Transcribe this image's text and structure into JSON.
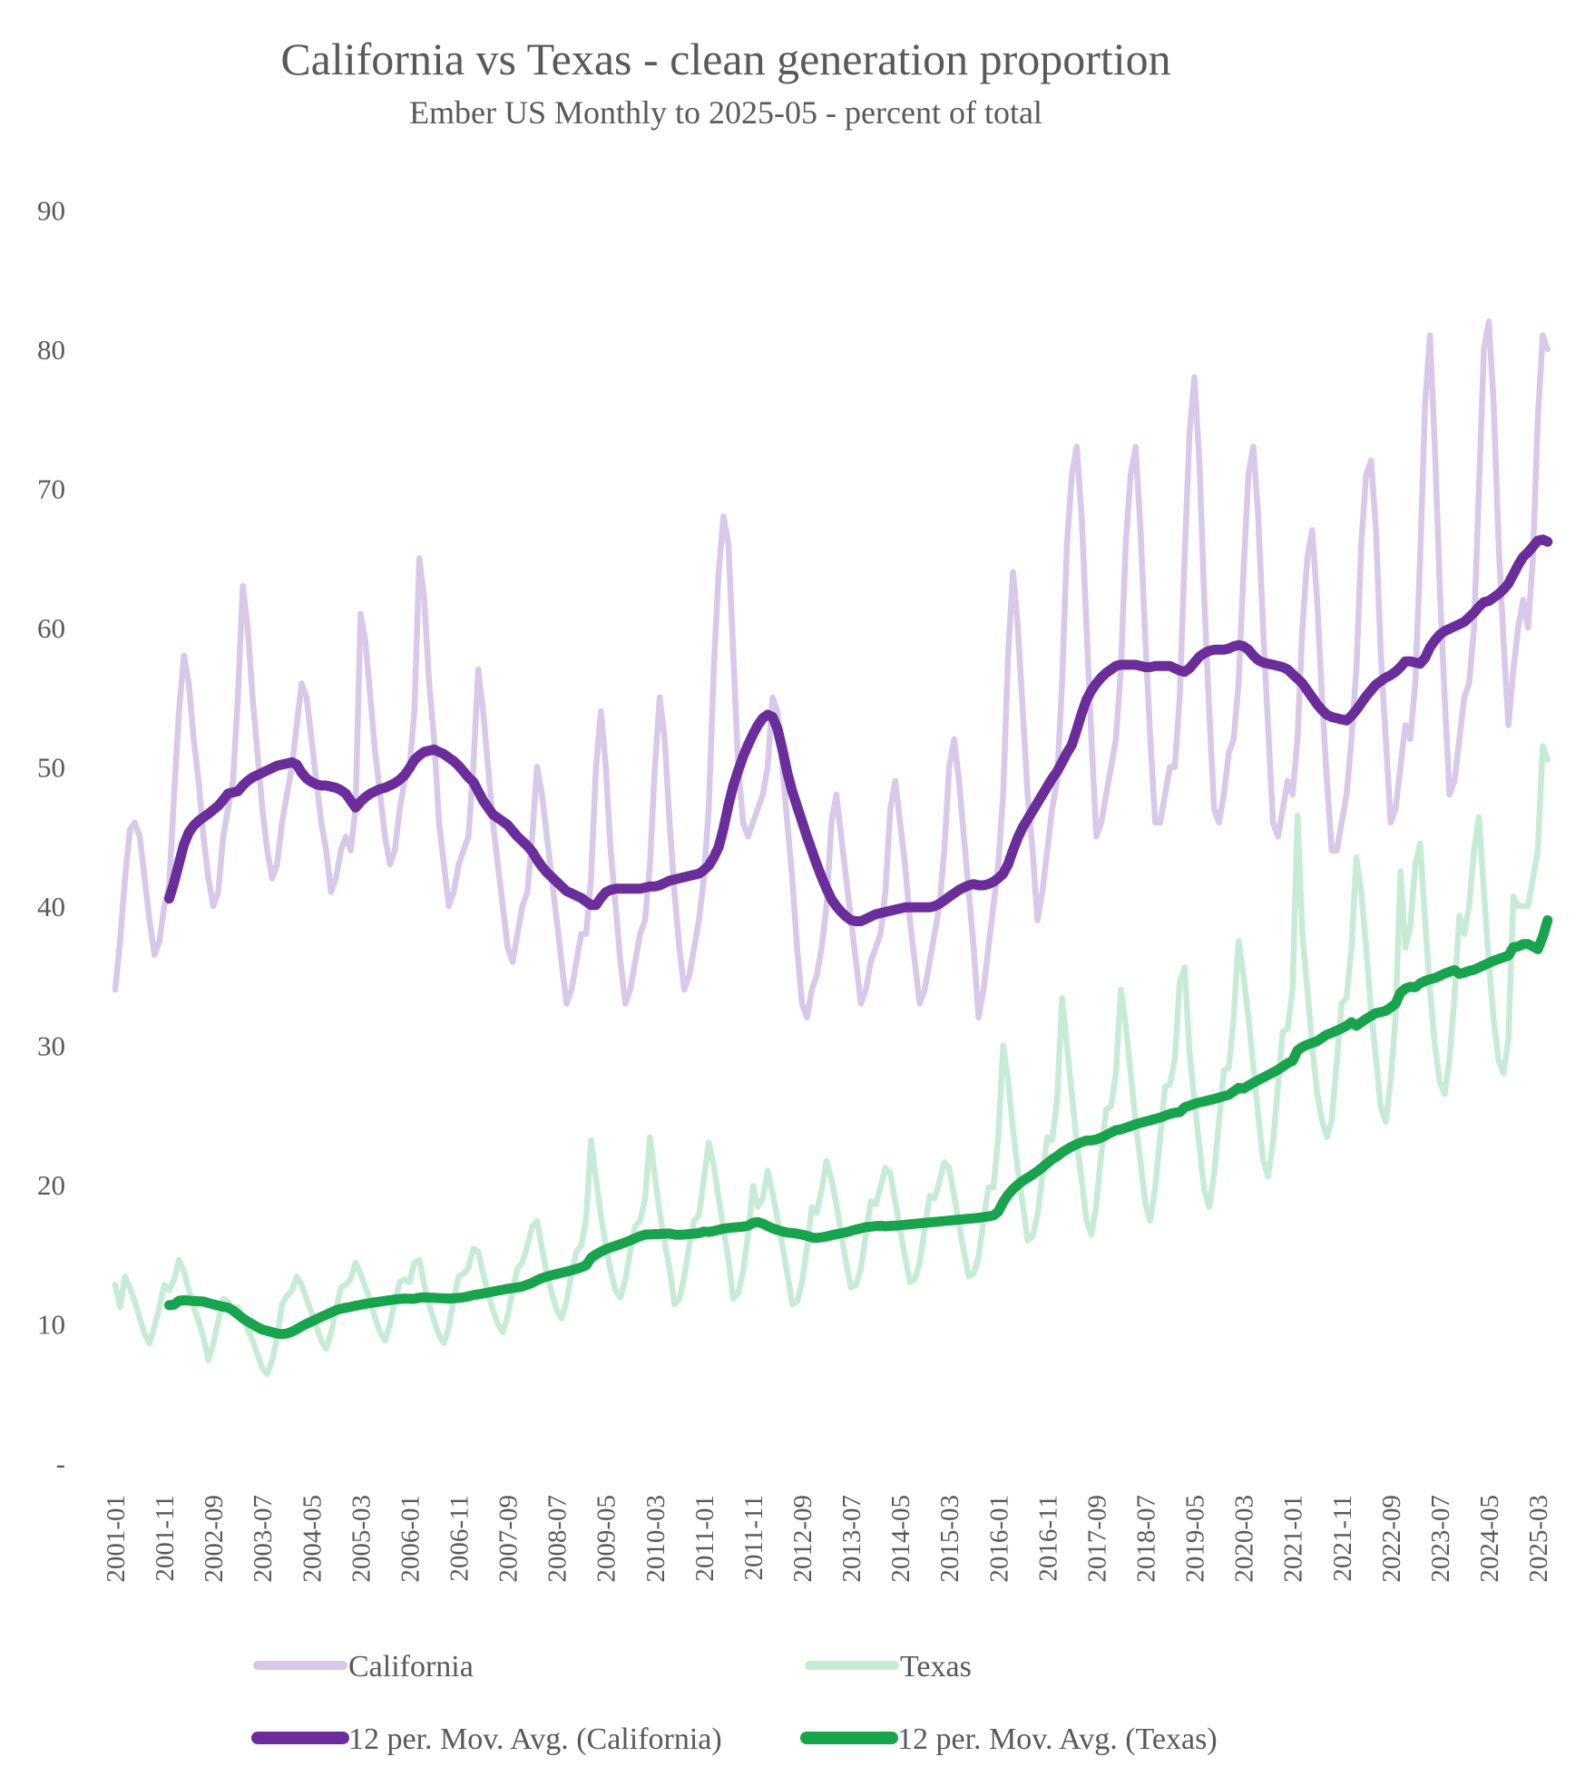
{
  "title": "California vs Texas - clean generation proportion",
  "subtitle": "Ember US Monthly to 2025-05 - percent of total",
  "text_color": "#595959",
  "legend": {
    "rows": [
      [
        {
          "label": "California",
          "series": "california",
          "stroke": 10
        },
        {
          "label": "Texas",
          "series": "texas",
          "stroke": 10
        }
      ],
      [
        {
          "label": "12 per. Mov. Avg. (California)",
          "series": "california_ma",
          "stroke": 14
        },
        {
          "label": "12 per. Mov. Avg. (Texas)",
          "series": "texas_ma",
          "stroke": 14
        }
      ]
    ]
  },
  "chart_data": {
    "type": "line",
    "title": "California vs Texas - clean generation proportion",
    "subtitle": "Ember US Monthly to 2025-05 - percent of total",
    "xlabel": "",
    "ylabel": "percent of total",
    "ylim": [
      0,
      90
    ],
    "grid": false,
    "legend_position": "bottom",
    "x_months": {
      "start": "2001-01",
      "end": "2025-05",
      "count": 293
    },
    "x_tick_every": 10,
    "x_tick_labels": [
      "2001-01",
      "2001-11",
      "2002-09",
      "2003-07",
      "2004-05",
      "2005-03",
      "2006-01",
      "2006-11",
      "2007-09",
      "2008-07",
      "2009-05",
      "2010-03",
      "2011-01",
      "2011-11",
      "2012-09",
      "2013-07",
      "2014-05",
      "2015-03",
      "2016-01",
      "2016-11",
      "2017-09",
      "2018-07",
      "2019-05",
      "2020-03",
      "2021-01",
      "2021-11",
      "2022-09",
      "2023-07",
      "2024-05",
      "2025-03"
    ],
    "y_ticks": [
      {
        "value": 90,
        "label": "90"
      },
      {
        "value": 80,
        "label": "80"
      },
      {
        "value": 70,
        "label": "70"
      },
      {
        "value": 60,
        "label": "60"
      },
      {
        "value": 50,
        "label": "50"
      },
      {
        "value": 40,
        "label": "40"
      },
      {
        "value": 30,
        "label": "30"
      },
      {
        "value": 20,
        "label": "20"
      },
      {
        "value": 10,
        "label": "10"
      },
      {
        "value": 0,
        "label": "-"
      }
    ],
    "moving_average_window": 12,
    "colors": {
      "california": "#D8C8E9",
      "texas": "#C8EBD6",
      "california_ma": "#6B2D9B",
      "texas_ma": "#18A34D"
    },
    "series": [
      {
        "name": "California",
        "key": "california",
        "values": [
          34,
          37.5,
          42,
          45.5,
          46,
          45,
          42,
          39,
          36.5,
          37.5,
          40,
          41.5,
          48,
          54,
          58,
          56,
          52,
          49,
          45,
          42,
          40,
          41,
          45,
          47,
          49,
          55,
          63,
          60,
          55,
          51,
          47,
          44,
          42,
          43,
          46,
          48,
          50,
          53,
          56,
          55,
          52,
          49,
          46,
          44,
          41,
          42,
          44,
          45,
          44,
          47,
          61,
          59,
          55,
          51,
          48,
          45,
          43,
          44,
          47,
          49,
          50,
          54,
          65,
          62,
          56,
          52,
          46,
          43,
          40,
          41,
          43,
          44,
          45,
          50,
          57,
          54,
          50,
          46,
          43,
          40,
          37,
          36,
          38,
          40,
          41,
          45,
          50,
          48,
          45,
          42,
          39,
          36,
          33,
          34,
          36,
          38,
          38,
          42,
          50,
          54,
          50,
          44,
          40,
          36,
          33,
          34,
          36,
          38,
          39,
          43,
          50,
          55,
          52,
          46,
          41,
          37,
          34,
          35,
          37,
          39,
          42,
          47,
          57,
          64,
          68,
          66,
          58,
          50,
          46,
          45,
          46,
          47,
          48,
          50,
          55,
          54,
          50,
          46,
          42,
          37,
          33,
          32,
          34,
          35,
          37,
          40,
          46,
          48,
          45,
          42,
          39,
          36,
          33,
          34,
          36,
          37,
          38,
          41,
          47,
          49,
          46,
          43,
          39,
          36,
          33,
          34,
          36,
          38,
          40,
          44,
          50,
          52,
          49,
          45,
          41,
          37,
          32,
          34,
          37,
          40,
          43,
          48,
          58,
          64,
          60,
          54,
          48,
          44,
          39,
          41,
          44,
          47,
          49,
          56,
          66,
          71,
          73,
          68,
          60,
          52,
          45,
          46,
          48,
          50,
          52,
          57,
          66,
          71,
          73,
          67,
          59,
          52,
          46,
          46,
          48,
          50,
          50,
          55,
          65,
          74,
          78,
          72,
          62,
          54,
          47,
          46,
          48,
          51,
          52,
          56,
          64,
          71,
          73,
          68,
          60,
          53,
          46,
          45,
          47,
          49,
          48,
          52,
          60,
          65,
          67,
          62,
          55,
          49,
          44,
          44,
          46,
          48,
          52,
          57,
          66,
          71,
          72,
          67,
          58,
          52,
          46,
          47,
          50,
          53,
          52,
          56,
          65,
          76,
          81,
          73,
          63,
          55,
          48,
          49,
          52,
          55,
          56,
          60,
          70,
          80,
          82,
          76,
          66,
          59,
          53,
          57,
          60,
          62,
          60,
          65,
          75,
          81,
          80
        ]
      },
      {
        "name": "Texas",
        "key": "texas",
        "values": [
          12.8,
          11.2,
          13.4,
          12.6,
          11.6,
          10.4,
          9.3,
          8.6,
          9.8,
          11.2,
          12.8,
          12.4,
          13.2,
          14.6,
          13.8,
          12.4,
          11.2,
          10.2,
          9,
          7.4,
          8.6,
          10.2,
          11.8,
          11.6,
          10.8,
          11.2,
          10.4,
          9.6,
          8.8,
          7.8,
          6.8,
          6.4,
          7.4,
          9,
          11.4,
          12,
          12.4,
          13.4,
          12.8,
          11.8,
          10.8,
          9.8,
          8.8,
          8.2,
          9.4,
          11,
          12.6,
          12.8,
          13.2,
          14.4,
          13.6,
          12.6,
          11.6,
          10.4,
          9.4,
          8.8,
          10,
          11.6,
          13,
          13.2,
          13,
          14.4,
          14.6,
          12.8,
          11.4,
          10.2,
          9.2,
          8.6,
          9.8,
          11.8,
          13.4,
          13.6,
          14,
          15.4,
          15.2,
          13.6,
          12.2,
          11,
          10,
          9.4,
          10.6,
          12.4,
          14,
          14.4,
          15.6,
          17,
          17.4,
          15.4,
          13.6,
          12.2,
          11,
          10.4,
          11.6,
          13.6,
          15.2,
          15.6,
          17.6,
          23.2,
          20.4,
          17.8,
          15.6,
          13.8,
          12.4,
          11.9,
          13.2,
          15.2,
          17,
          17.4,
          19,
          23.4,
          20.6,
          18,
          15.8,
          14,
          11.4,
          11.8,
          13.4,
          15.6,
          17.4,
          17.8,
          20.4,
          23,
          21.4,
          19,
          16.8,
          14.6,
          11.8,
          12.2,
          13.8,
          16.4,
          19.9,
          18.4,
          19,
          21,
          19.4,
          17.6,
          15.6,
          13.6,
          11.4,
          11.6,
          13,
          15.4,
          18.4,
          18,
          19.6,
          21.7,
          20.4,
          18.6,
          16.4,
          14.4,
          12.6,
          12.8,
          14,
          16.4,
          18.8,
          18.6,
          19.8,
          21.2,
          20.8,
          18.8,
          16.8,
          14.8,
          13,
          13.2,
          14.4,
          16.8,
          19.2,
          19,
          20.2,
          21.6,
          21.2,
          19.2,
          17.2,
          15.2,
          13.4,
          13.6,
          14.8,
          17.4,
          19.8,
          19.8,
          23.4,
          30,
          27.5,
          24,
          21,
          18.6,
          16,
          16.3,
          17.8,
          20.6,
          23.4,
          23.2,
          26,
          33.4,
          30,
          26.5,
          23,
          20.4,
          17.4,
          16.4,
          18.6,
          22.2,
          25.4,
          25.6,
          28,
          34,
          31.5,
          28,
          24.5,
          21.6,
          18.6,
          17.4,
          19.8,
          23.4,
          27,
          27.2,
          29,
          34.5,
          35.6,
          29.5,
          26,
          22.8,
          19.6,
          18.4,
          20.8,
          24.6,
          28.2,
          28.4,
          32,
          37.5,
          35,
          32,
          28.5,
          25,
          21.8,
          20.6,
          23,
          27,
          31,
          31.2,
          34,
          46.5,
          38,
          34,
          30,
          26.6,
          24.6,
          23.4,
          24.6,
          28.8,
          33,
          33.4,
          37,
          43.5,
          41,
          37,
          32.5,
          29,
          25.5,
          24.5,
          27.5,
          32,
          42.5,
          37,
          38.5,
          43,
          44.5,
          39,
          34,
          30,
          27.4,
          26.5,
          29,
          33.5,
          39.3,
          38,
          40,
          44,
          46.4,
          41,
          36,
          31.8,
          28.9,
          28,
          30.5,
          40.7,
          40,
          40,
          40,
          42,
          44,
          51.5,
          50.5
        ]
      }
    ]
  }
}
